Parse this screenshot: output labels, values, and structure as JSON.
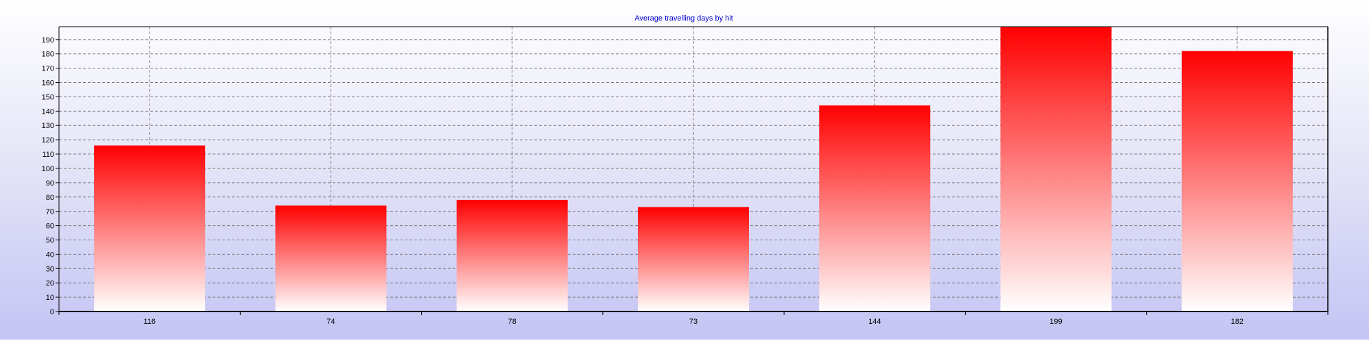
{
  "chart_data": {
    "type": "bar",
    "title": "Average travelling days by hit",
    "xlabel": "",
    "ylabel": "",
    "categories": [
      "116",
      "74",
      "78",
      "73",
      "144",
      "199",
      "182"
    ],
    "values": [
      116,
      74,
      78,
      73,
      144,
      199,
      182
    ],
    "ylim": [
      0,
      199
    ],
    "yticks": [
      0,
      10,
      20,
      30,
      40,
      50,
      60,
      70,
      80,
      90,
      100,
      110,
      120,
      130,
      140,
      150,
      160,
      170,
      180,
      190
    ],
    "grid": true,
    "legend": "none",
    "colors": {
      "bar_top": "#ff0000",
      "bar_bottom": "#ffffff",
      "title": "#0000cc",
      "grid": "#777777",
      "axis": "#000000"
    }
  }
}
